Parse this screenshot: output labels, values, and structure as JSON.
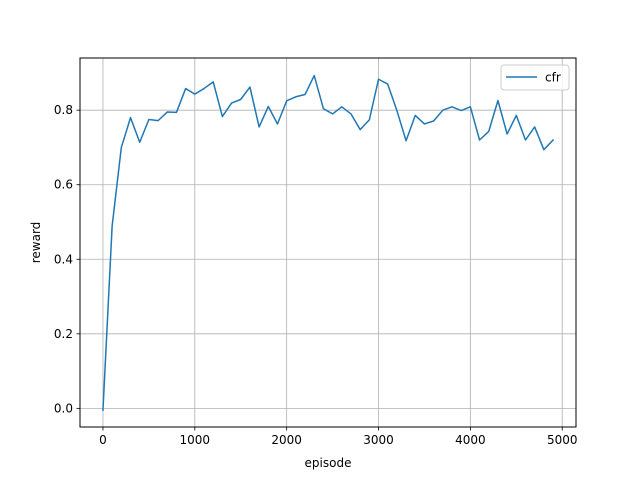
{
  "chart_data": {
    "type": "line",
    "xlabel": "episode",
    "ylabel": "reward",
    "xlim": [
      -250,
      5150
    ],
    "ylim": [
      -0.05,
      0.94
    ],
    "xticks": [
      0,
      1000,
      2000,
      3000,
      4000,
      5000
    ],
    "yticks": [
      0.0,
      0.2,
      0.4,
      0.6,
      0.8
    ],
    "xtick_labels": [
      "0",
      "1000",
      "2000",
      "3000",
      "4000",
      "5000"
    ],
    "ytick_labels": [
      "0.0",
      "0.2",
      "0.4",
      "0.6",
      "0.8"
    ],
    "grid": true,
    "legend_position": "top-right",
    "series": [
      {
        "name": "cfr",
        "color": "#1f77b4",
        "x": [
          0,
          100,
          200,
          300,
          400,
          500,
          600,
          700,
          800,
          900,
          1000,
          1100,
          1200,
          1300,
          1400,
          1500,
          1600,
          1700,
          1800,
          1900,
          2000,
          2100,
          2200,
          2300,
          2400,
          2500,
          2600,
          2700,
          2800,
          2900,
          3000,
          3100,
          3200,
          3300,
          3400,
          3500,
          3600,
          3700,
          3800,
          3900,
          4000,
          4100,
          4200,
          4300,
          4400,
          4500,
          4600,
          4700,
          4800,
          4900
        ],
        "y": [
          -0.005,
          0.49,
          0.7,
          0.78,
          0.714,
          0.775,
          0.772,
          0.795,
          0.794,
          0.858,
          0.843,
          0.858,
          0.876,
          0.783,
          0.819,
          0.829,
          0.862,
          0.755,
          0.81,
          0.763,
          0.825,
          0.836,
          0.842,
          0.893,
          0.804,
          0.79,
          0.809,
          0.79,
          0.748,
          0.774,
          0.883,
          0.87,
          0.799,
          0.718,
          0.786,
          0.763,
          0.771,
          0.8,
          0.809,
          0.799,
          0.809,
          0.72,
          0.743,
          0.826,
          0.736,
          0.786,
          0.72,
          0.755,
          0.694,
          0.72
        ]
      }
    ]
  }
}
